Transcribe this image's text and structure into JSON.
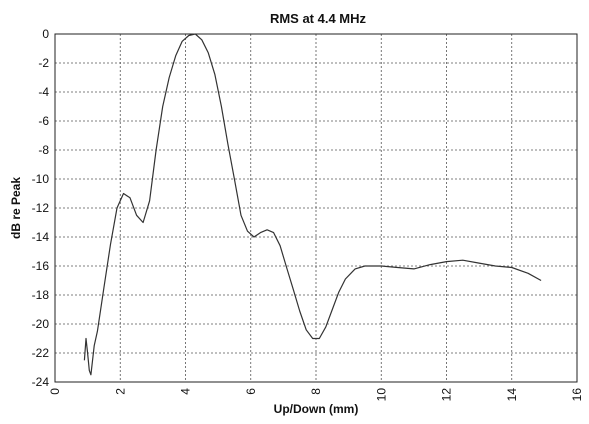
{
  "chart_data": {
    "type": "line",
    "title": "RMS at 4.4 MHz",
    "xlabel": "Up/Down (mm)",
    "ylabel": "dB re Peak",
    "xlim": [
      0,
      16
    ],
    "ylim": [
      -24,
      0
    ],
    "xticks": [
      "0",
      "2",
      "4",
      "6",
      "8",
      "10",
      "12",
      "14",
      "16"
    ],
    "yticks": [
      "0",
      "-2",
      "-4",
      "-6",
      "-8",
      "-10",
      "-12",
      "-14",
      "-16",
      "-18",
      "-20",
      "-22",
      "-24"
    ],
    "grid": true,
    "series": [
      {
        "x": [
          0.9,
          0.95,
          1.0,
          1.05,
          1.1,
          1.2,
          1.3,
          1.5,
          1.7,
          1.9,
          2.1,
          2.3,
          2.5,
          2.7,
          2.9,
          3.1,
          3.3,
          3.5,
          3.7,
          3.9,
          4.1,
          4.3,
          4.5,
          4.7,
          4.9,
          5.1,
          5.3,
          5.5,
          5.7,
          5.9,
          6.1,
          6.3,
          6.5,
          6.7,
          6.9,
          7.1,
          7.3,
          7.5,
          7.7,
          7.9,
          8.1,
          8.3,
          8.5,
          8.7,
          8.9,
          9.2,
          9.5,
          10.0,
          10.5,
          11.0,
          11.5,
          12.0,
          12.5,
          13.0,
          13.5,
          14.0,
          14.5,
          14.9
        ],
        "y": [
          -22.5,
          -21.0,
          -22.0,
          -23.2,
          -23.5,
          -21.5,
          -20.5,
          -17.5,
          -14.5,
          -12.0,
          -11.0,
          -11.3,
          -12.5,
          -13.0,
          -11.5,
          -8.0,
          -5.0,
          -3.0,
          -1.5,
          -0.5,
          -0.1,
          0.0,
          -0.4,
          -1.3,
          -2.8,
          -5.0,
          -7.6,
          -10.0,
          -12.5,
          -13.6,
          -14.0,
          -13.7,
          -13.5,
          -13.7,
          -14.6,
          -16.1,
          -17.6,
          -19.1,
          -20.4,
          -21.0,
          -21.0,
          -20.2,
          -19.0,
          -17.8,
          -16.9,
          -16.2,
          -16.0,
          -16.0,
          -16.1,
          -16.2,
          -15.9,
          -15.7,
          -15.6,
          -15.8,
          -16.0,
          -16.1,
          -16.5,
          -17.0
        ]
      }
    ]
  }
}
